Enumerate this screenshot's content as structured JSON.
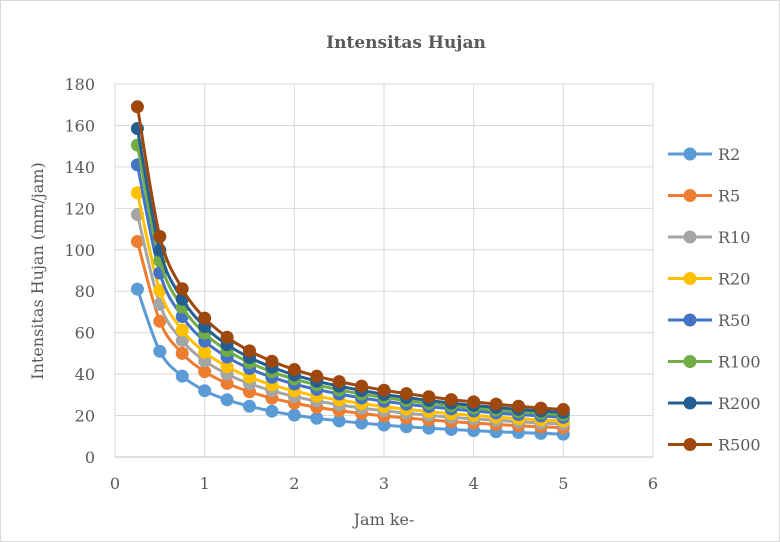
{
  "chart_data": {
    "type": "line",
    "title": "Intensitas  Hujan",
    "xlabel": "Jam ke-",
    "ylabel": "Intensitas Hujan (mm/jam)",
    "xlim": [
      0,
      6
    ],
    "ylim": [
      0,
      180
    ],
    "x_ticks": [
      "0",
      "1",
      "2",
      "3",
      "4",
      "5",
      "6"
    ],
    "y_ticks": [
      "0",
      "20",
      "40",
      "60",
      "80",
      "100",
      "120",
      "140",
      "160",
      "180"
    ],
    "grid": true,
    "legend_position": "right",
    "x": [
      0.25,
      0.5,
      0.75,
      1,
      1.25,
      1.5,
      1.75,
      2,
      2.25,
      2.5,
      2.75,
      3,
      3.25,
      3.5,
      3.75,
      4,
      4.25,
      4.5,
      4.75,
      5
    ],
    "series": [
      {
        "name": "R2",
        "color": "#5b9bd5",
        "values": [
          81,
          51,
          39,
          32,
          27.6,
          24.5,
          22.1,
          20.2,
          18.7,
          17.4,
          16.4,
          15.4,
          14.6,
          13.9,
          13.3,
          12.7,
          12.2,
          11.8,
          11.4,
          11
        ]
      },
      {
        "name": "R5",
        "color": "#ed7d31",
        "values": [
          104,
          65.5,
          50,
          41.2,
          35.5,
          31.5,
          28.4,
          26,
          24,
          22.4,
          21,
          19.8,
          18.8,
          17.9,
          17.1,
          16.4,
          15.7,
          15.1,
          14.6,
          14.1
        ]
      },
      {
        "name": "R10",
        "color": "#a5a5a5",
        "values": [
          117,
          73.7,
          56.2,
          46.4,
          40,
          35.4,
          32,
          29.2,
          27,
          25.2,
          23.6,
          22.3,
          21.2,
          20.1,
          19.2,
          18.4,
          17.7,
          17,
          16.4,
          15.9
        ]
      },
      {
        "name": "R20",
        "color": "#ffc000",
        "values": [
          127.5,
          80.3,
          61.3,
          50.6,
          43.6,
          38.6,
          34.8,
          31.9,
          29.4,
          27.5,
          25.8,
          24.3,
          23.1,
          21.9,
          20.9,
          20.1,
          19.3,
          18.5,
          17.9,
          17.3
        ]
      },
      {
        "name": "R50",
        "color": "#4472c4",
        "values": [
          141,
          88.8,
          67.8,
          55.9,
          48.2,
          42.7,
          38.5,
          35.2,
          32.6,
          30.4,
          28.5,
          26.9,
          25.5,
          24.3,
          23.2,
          22.2,
          21.3,
          20.5,
          19.8,
          19.1
        ]
      },
      {
        "name": "R100",
        "color": "#70ad47",
        "values": [
          150.5,
          94.8,
          72.3,
          59.7,
          51.4,
          45.6,
          41.1,
          37.6,
          34.8,
          32.4,
          30.4,
          28.7,
          27.2,
          25.9,
          24.7,
          23.7,
          22.7,
          21.9,
          21.1,
          20.4
        ]
      },
      {
        "name": "R200",
        "color": "#255e91",
        "values": [
          158.5,
          99.8,
          76.2,
          62.9,
          54.2,
          48,
          43.3,
          39.6,
          36.6,
          34.2,
          32.1,
          30.2,
          28.7,
          27.3,
          26,
          24.9,
          23.9,
          23,
          22.2,
          21.5
        ]
      },
      {
        "name": "R500",
        "color": "#9e480e",
        "values": [
          169,
          106.4,
          81.2,
          67,
          57.8,
          51.2,
          46.2,
          42.2,
          39,
          36.4,
          34.2,
          32.2,
          30.6,
          29.1,
          27.7,
          26.6,
          25.5,
          24.5,
          23.6,
          22.9
        ]
      }
    ]
  }
}
